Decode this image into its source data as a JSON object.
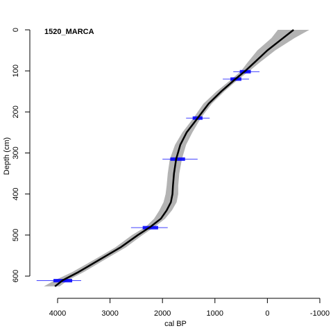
{
  "chart_data": {
    "type": "line",
    "title": "1520_MARCA",
    "xlabel": "cal BP",
    "ylabel": "Depth (cm)",
    "xlim": [
      4450,
      -1000
    ],
    "ylim": [
      650,
      -10
    ],
    "x_reversed": true,
    "y_reversed": true,
    "x_ticks": [
      4000,
      3000,
      2000,
      1000,
      0,
      -1000
    ],
    "y_ticks": [
      0,
      100,
      200,
      300,
      400,
      500,
      600
    ],
    "grid": false,
    "series": [
      {
        "role": "median-age-model",
        "color": "#000000",
        "points": [
          {
            "depth": 0,
            "age": -500
          },
          {
            "depth": 20,
            "age": -300
          },
          {
            "depth": 50,
            "age": 0
          },
          {
            "depth": 80,
            "age": 250
          },
          {
            "depth": 100,
            "age": 420
          },
          {
            "depth": 120,
            "age": 610
          },
          {
            "depth": 150,
            "age": 880
          },
          {
            "depth": 180,
            "age": 1120
          },
          {
            "depth": 215,
            "age": 1330
          },
          {
            "depth": 250,
            "age": 1540
          },
          {
            "depth": 280,
            "age": 1660
          },
          {
            "depth": 315,
            "age": 1740
          },
          {
            "depth": 350,
            "age": 1780
          },
          {
            "depth": 380,
            "age": 1800
          },
          {
            "depth": 400,
            "age": 1810
          },
          {
            "depth": 420,
            "age": 1840
          },
          {
            "depth": 440,
            "age": 1920
          },
          {
            "depth": 460,
            "age": 2030
          },
          {
            "depth": 480,
            "age": 2230
          },
          {
            "depth": 500,
            "age": 2470
          },
          {
            "depth": 530,
            "age": 2800
          },
          {
            "depth": 560,
            "age": 3200
          },
          {
            "depth": 590,
            "age": 3600
          },
          {
            "depth": 610,
            "age": 3900
          },
          {
            "depth": 625,
            "age": 4050
          }
        ]
      },
      {
        "role": "confidence-envelope",
        "color": "#b3b3b3",
        "points": [
          {
            "depth": 0,
            "young": -800,
            "old": -200
          },
          {
            "depth": 20,
            "young": -520,
            "old": -80
          },
          {
            "depth": 50,
            "young": -150,
            "old": 190
          },
          {
            "depth": 80,
            "young": 150,
            "old": 380
          },
          {
            "depth": 100,
            "young": 340,
            "old": 500
          },
          {
            "depth": 120,
            "young": 550,
            "old": 680
          },
          {
            "depth": 150,
            "young": 820,
            "old": 970
          },
          {
            "depth": 180,
            "young": 1060,
            "old": 1220
          },
          {
            "depth": 215,
            "young": 1270,
            "old": 1410
          },
          {
            "depth": 250,
            "young": 1430,
            "old": 1620
          },
          {
            "depth": 280,
            "young": 1550,
            "old": 1760
          },
          {
            "depth": 315,
            "young": 1630,
            "old": 1860
          },
          {
            "depth": 350,
            "young": 1680,
            "old": 1900
          },
          {
            "depth": 380,
            "young": 1700,
            "old": 1920
          },
          {
            "depth": 400,
            "young": 1700,
            "old": 1940
          },
          {
            "depth": 420,
            "young": 1730,
            "old": 1980
          },
          {
            "depth": 440,
            "young": 1820,
            "old": 2060
          },
          {
            "depth": 460,
            "young": 1950,
            "old": 2160
          },
          {
            "depth": 480,
            "young": 2150,
            "old": 2320
          },
          {
            "depth": 500,
            "young": 2380,
            "old": 2580
          },
          {
            "depth": 530,
            "young": 2700,
            "old": 2900
          },
          {
            "depth": 560,
            "young": 3100,
            "old": 3300
          },
          {
            "depth": 590,
            "young": 3500,
            "old": 3720
          },
          {
            "depth": 610,
            "young": 3800,
            "old": 4050
          },
          {
            "depth": 625,
            "young": 3960,
            "old": 4260
          }
        ]
      }
    ],
    "dates": [
      {
        "depth": 102,
        "age": 420,
        "age_min": 150,
        "age_max": 650
      },
      {
        "depth": 120,
        "age": 600,
        "age_min": 350,
        "age_max": 850
      },
      {
        "depth": 215,
        "age": 1330,
        "age_min": 1100,
        "age_max": 1550
      },
      {
        "depth": 315,
        "age": 1710,
        "age_min": 1330,
        "age_max": 2000
      },
      {
        "depth": 482,
        "age": 2230,
        "age_min": 1900,
        "age_max": 2600
      },
      {
        "depth": 611,
        "age": 3900,
        "age_min": 3550,
        "age_max": 4400
      }
    ],
    "date_color": "#0000ff"
  }
}
